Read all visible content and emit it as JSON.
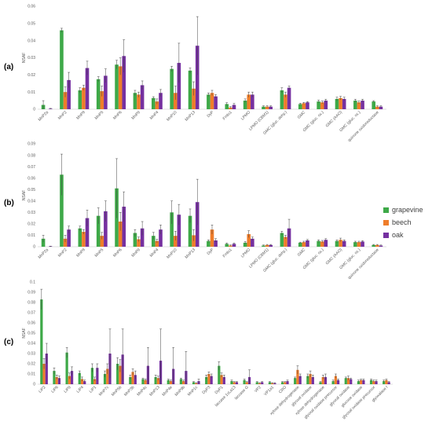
{
  "colors": {
    "grapevine": "#3ea948",
    "beech": "#ef7d2a",
    "oak": "#7530a0",
    "axis": "#d9d9d9",
    "text": "#595959",
    "error": "#404040"
  },
  "legend": [
    {
      "name": "grapevine",
      "color": "#3ea948"
    },
    {
      "name": "beech",
      "color": "#ef7d2a"
    },
    {
      "name": "oak",
      "color": "#7530a0"
    }
  ],
  "chart_data": [
    {
      "type": "bar",
      "panel_label": "(a)",
      "ylabel": "NSAF",
      "ylim": [
        0,
        0.06
      ],
      "yticks": [
        0,
        0.01,
        0.02,
        0.03,
        0.04,
        0.05,
        0.06
      ],
      "categories": [
        "MnP2a",
        "MnP2",
        "MnP8",
        "MnP5",
        "MnP6",
        "MnP9",
        "MnP4",
        "MnP10",
        "MnP13",
        "DyP",
        "Fmlo1",
        "LPMO",
        "LPMO (CBM1)",
        "GMC (gluc. dehy.)",
        "GMC",
        "GMC (gluc. ox.)",
        "GMC (AAO)",
        "GMC (gluc. ox.)",
        "quinone oxidoreductase"
      ],
      "series": [
        {
          "name": "grapevine",
          "values": [
            0.0025,
            0.046,
            0.011,
            0.0175,
            0.026,
            0.0095,
            0.0065,
            0.0235,
            0.0225,
            0.0085,
            0.003,
            0.005,
            0.0015,
            0.011,
            0.003,
            0.0045,
            0.006,
            0.005,
            0.0045
          ],
          "errors": [
            0.0025,
            0.0012,
            0.0015,
            0.0015,
            0.0025,
            0.0015,
            0.0008,
            0.0015,
            0.0015,
            0.001,
            0.0008,
            0.001,
            0.0005,
            0.0015,
            0.0005,
            0.0008,
            0.001,
            0.0008,
            0.0005
          ]
        },
        {
          "name": "beech",
          "values": [
            0.0,
            0.01,
            0.0125,
            0.0105,
            0.025,
            0.0085,
            0.0045,
            0.0095,
            0.012,
            0.0095,
            0.001,
            0.0085,
            0.0015,
            0.0085,
            0.0035,
            0.004,
            0.0065,
            0.004,
            0.0015
          ],
          "errors": [
            0.0,
            0.003,
            0.0015,
            0.003,
            0.005,
            0.0015,
            0.0015,
            0.004,
            0.004,
            0.0015,
            0.0005,
            0.0015,
            0.0005,
            0.0015,
            0.0005,
            0.0008,
            0.001,
            0.0008,
            0.0005
          ]
        },
        {
          "name": "oak",
          "values": [
            0.0003,
            0.017,
            0.024,
            0.0195,
            0.031,
            0.014,
            0.0095,
            0.027,
            0.037,
            0.0075,
            0.0025,
            0.0085,
            0.0015,
            0.0125,
            0.004,
            0.005,
            0.006,
            0.005,
            0.0015
          ],
          "errors": [
            0.0002,
            0.0045,
            0.004,
            0.004,
            0.0095,
            0.0025,
            0.002,
            0.0115,
            0.017,
            0.001,
            0.0008,
            0.0015,
            0.0005,
            0.001,
            0.0005,
            0.0008,
            0.001,
            0.0008,
            0.0005
          ]
        }
      ]
    },
    {
      "type": "bar",
      "panel_label": "(b)",
      "ylabel": "NSAF",
      "ylim": [
        0,
        0.09
      ],
      "yticks": [
        0,
        0.01,
        0.02,
        0.03,
        0.04,
        0.05,
        0.06,
        0.07,
        0.08,
        0.09
      ],
      "categories": [
        "MnP2a",
        "MnP2",
        "MnP8",
        "MnP5",
        "MnP6",
        "MnP9",
        "MnP4",
        "MnP10",
        "MnP13",
        "DyP",
        "Fmlo1",
        "LPMO",
        "LPMO (CBM1)",
        "GMC (gluc. dehy.)",
        "GMC",
        "GMC (gluc. ox.)",
        "GMC (AAO)",
        "GMC (gluc. ox.)",
        "quinone oxidoreductase"
      ],
      "series": [
        {
          "name": "grapevine",
          "values": [
            0.007,
            0.063,
            0.016,
            0.027,
            0.051,
            0.012,
            0.0095,
            0.03,
            0.027,
            0.005,
            0.0025,
            0.0035,
            0.001,
            0.012,
            0.0035,
            0.005,
            0.005,
            0.004,
            0.0015
          ],
          "errors": [
            0.003,
            0.018,
            0.002,
            0.007,
            0.026,
            0.003,
            0.003,
            0.01,
            0.006,
            0.001,
            0.0008,
            0.001,
            0.0005,
            0.0015,
            0.0005,
            0.001,
            0.001,
            0.0008,
            0.0005
          ]
        },
        {
          "name": "beech",
          "values": [
            0.0,
            0.007,
            0.013,
            0.0095,
            0.022,
            0.0065,
            0.005,
            0.0095,
            0.01,
            0.015,
            0.001,
            0.011,
            0.0015,
            0.0085,
            0.004,
            0.0045,
            0.006,
            0.004,
            0.0015
          ],
          "errors": [
            0.0,
            0.003,
            0.002,
            0.003,
            0.008,
            0.002,
            0.0015,
            0.004,
            0.005,
            0.004,
            0.0005,
            0.003,
            0.0005,
            0.0015,
            0.0008,
            0.001,
            0.0015,
            0.0008,
            0.0005
          ]
        },
        {
          "name": "oak",
          "values": [
            0.0003,
            0.015,
            0.025,
            0.031,
            0.035,
            0.016,
            0.015,
            0.028,
            0.039,
            0.0055,
            0.0025,
            0.007,
            0.0015,
            0.016,
            0.0055,
            0.006,
            0.005,
            0.0045,
            0.001
          ],
          "errors": [
            0.0002,
            0.003,
            0.007,
            0.009,
            0.013,
            0.006,
            0.004,
            0.009,
            0.02,
            0.0015,
            0.0008,
            0.0015,
            0.0005,
            0.008,
            0.0008,
            0.001,
            0.001,
            0.0008,
            0.0005
          ]
        }
      ]
    },
    {
      "type": "bar",
      "panel_label": "(c)",
      "ylabel": "NSAF",
      "ylim": [
        0,
        0.1
      ],
      "yticks": [
        0,
        0.01,
        0.02,
        0.03,
        0.04,
        0.05,
        0.06,
        0.07,
        0.08,
        0.09,
        0.1
      ],
      "categories": [
        "LiP2",
        "LiP6",
        "LiP9",
        "LiP4",
        "LiP1",
        "MnP7c",
        "MnP5b",
        "MnP3b",
        "MnP4c",
        "MnP13",
        "MnP4e",
        "MnP9b",
        "MnP1c",
        "DyP3",
        "DyP1",
        "laccase 1vLa13",
        "laccase G",
        "VP2",
        "VP1a1",
        "CRO",
        "xylose dehydrogenase",
        "glyoxal oxidase",
        "xylose dehydrogenase",
        "glyoxal oxidase precursor",
        "glyoxal oxidase",
        "glucose oxidase",
        "glyoxal oxidase precursor",
        "glyoxalase I"
      ],
      "series": [
        {
          "name": "grapevine",
          "values": [
            0.083,
            0.013,
            0.031,
            0.011,
            0.016,
            0.01,
            0.02,
            0.007,
            0.005,
            0.007,
            0.004,
            0.005,
            0.002,
            0.007,
            0.018,
            0.003,
            0.004,
            0.002,
            0.002,
            0.002,
            0.006,
            0.008,
            0.002,
            0.003,
            0.006,
            0.003,
            0.004,
            0.003
          ],
          "errors": [
            0.01,
            0.003,
            0.005,
            0.002,
            0.004,
            0.003,
            0.006,
            0.002,
            0.001,
            0.002,
            0.001,
            0.001,
            0.0005,
            0.002,
            0.004,
            0.001,
            0.001,
            0.0005,
            0.0005,
            0.0005,
            0.001,
            0.002,
            0.0005,
            0.001,
            0.001,
            0.001,
            0.001,
            0.001
          ]
        },
        {
          "name": "beech",
          "values": [
            0.02,
            0.007,
            0.008,
            0.005,
            0.005,
            0.015,
            0.018,
            0.012,
            0.004,
            0.006,
            0.003,
            0.003,
            0.001,
            0.01,
            0.009,
            0.002,
            0.002,
            0.001,
            0.001,
            0.002,
            0.014,
            0.01,
            0.007,
            0.008,
            0.006,
            0.004,
            0.003,
            0.004
          ],
          "errors": [
            0.005,
            0.002,
            0.003,
            0.002,
            0.002,
            0.005,
            0.006,
            0.003,
            0.001,
            0.002,
            0.001,
            0.001,
            0.0005,
            0.002,
            0.002,
            0.0005,
            0.0005,
            0.0005,
            0.0005,
            0.0005,
            0.004,
            0.003,
            0.002,
            0.002,
            0.002,
            0.001,
            0.001,
            0.001
          ]
        },
        {
          "name": "oak",
          "values": [
            0.03,
            0.006,
            0.013,
            0.003,
            0.016,
            0.03,
            0.029,
            0.009,
            0.018,
            0.023,
            0.015,
            0.013,
            0.003,
            0.008,
            0.007,
            0.002,
            0.007,
            0.002,
            0.001,
            0.003,
            0.008,
            0.007,
            0.007,
            0.004,
            0.005,
            0.004,
            0.003,
            0.002
          ],
          "errors": [
            0.01,
            0.002,
            0.004,
            0.001,
            0.004,
            0.024,
            0.025,
            0.004,
            0.018,
            0.031,
            0.021,
            0.019,
            0.002,
            0.002,
            0.002,
            0.0005,
            0.007,
            0.0005,
            0.0005,
            0.001,
            0.002,
            0.002,
            0.003,
            0.001,
            0.001,
            0.001,
            0.001,
            0.0005
          ]
        }
      ]
    }
  ]
}
